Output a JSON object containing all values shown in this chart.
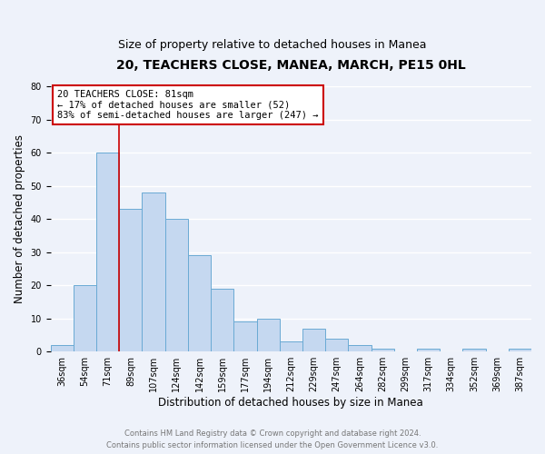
{
  "title": "20, TEACHERS CLOSE, MANEA, MARCH, PE15 0HL",
  "subtitle": "Size of property relative to detached houses in Manea",
  "xlabel": "Distribution of detached houses by size in Manea",
  "ylabel": "Number of detached properties",
  "bar_labels": [
    "36sqm",
    "54sqm",
    "71sqm",
    "89sqm",
    "107sqm",
    "124sqm",
    "142sqm",
    "159sqm",
    "177sqm",
    "194sqm",
    "212sqm",
    "229sqm",
    "247sqm",
    "264sqm",
    "282sqm",
    "299sqm",
    "317sqm",
    "334sqm",
    "352sqm",
    "369sqm",
    "387sqm"
  ],
  "bar_values": [
    2,
    20,
    60,
    43,
    48,
    40,
    29,
    19,
    9,
    10,
    3,
    7,
    4,
    2,
    1,
    0,
    1,
    0,
    1,
    0,
    1
  ],
  "bar_color": "#c5d8f0",
  "bar_edge_color": "#6aaad4",
  "vline_x_index": 3,
  "vline_color": "#cc0000",
  "annotation_title": "20 TEACHERS CLOSE: 81sqm",
  "annotation_line1": "← 17% of detached houses are smaller (52)",
  "annotation_line2": "83% of semi-detached houses are larger (247) →",
  "annotation_box_facecolor": "white",
  "annotation_box_edgecolor": "#cc0000",
  "ylim": [
    0,
    80
  ],
  "yticks": [
    0,
    10,
    20,
    30,
    40,
    50,
    60,
    70,
    80
  ],
  "footer_line1": "Contains HM Land Registry data © Crown copyright and database right 2024.",
  "footer_line2": "Contains public sector information licensed under the Open Government Licence v3.0.",
  "background_color": "#eef2fa",
  "plot_bg_color": "#eef2fa",
  "grid_color": "white",
  "title_fontsize": 10,
  "subtitle_fontsize": 9,
  "axis_label_fontsize": 8.5,
  "tick_fontsize": 7,
  "annotation_fontsize": 7.5,
  "footer_fontsize": 6
}
